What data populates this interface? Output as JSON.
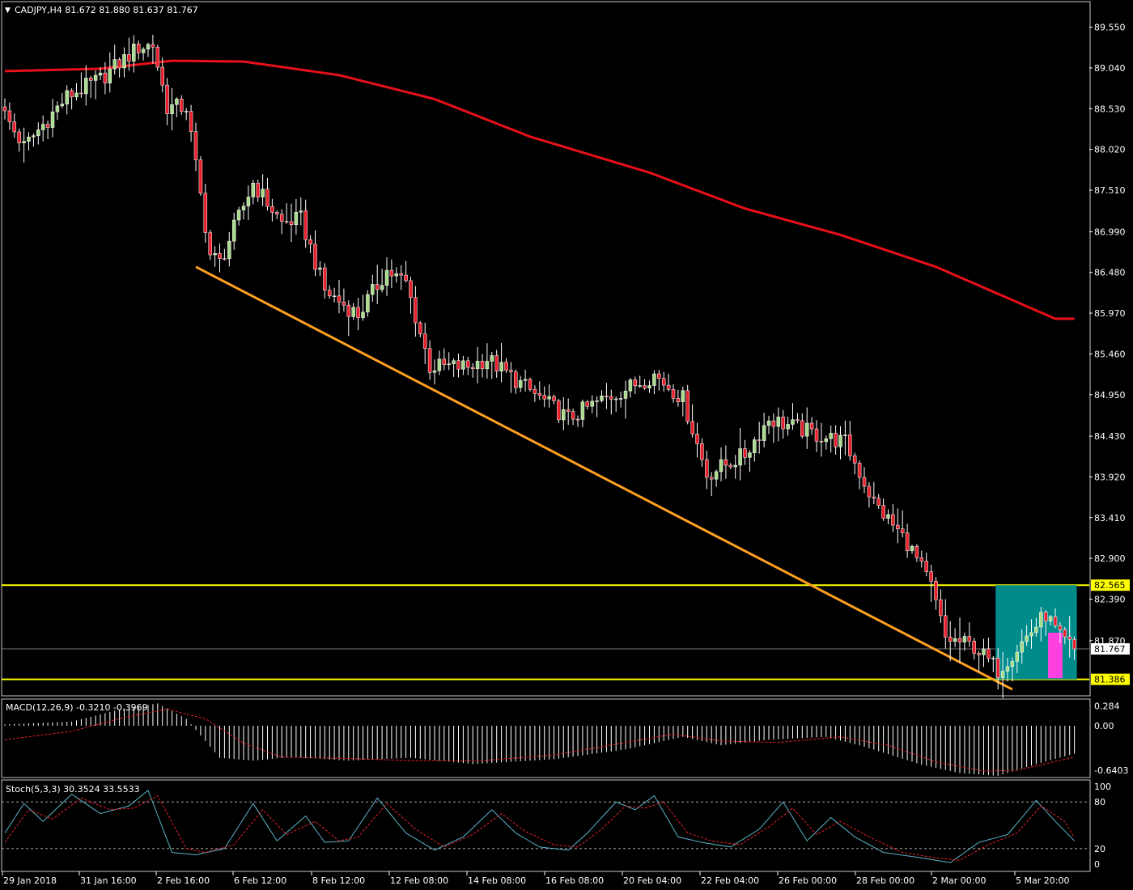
{
  "header": {
    "symbol_line": "CADJPY,H4  81.672 81.880 81.637 81.767",
    "menu_marker": "▼"
  },
  "colors": {
    "background": "#000000",
    "grid": "#ffffff",
    "bull_candle": "#a9dc8a",
    "bear_candle": "#e8202c",
    "wick": "#ffffff",
    "ma_line": "#e8101a",
    "trendline": "#ffa020",
    "support_resistance": "#ffff00",
    "zone_fill": "#008b8b",
    "zone_marker": "#ff40e0",
    "macd_hist": "#ffffff",
    "macd_signal": "#e8202c",
    "stoch_main": "#5ab4c8",
    "stoch_signal": "#e8202c",
    "price_tag_bg": "#ffff00",
    "current_price_tag_bg": "#ffffff"
  },
  "chart_data": [
    {
      "type": "candlestick",
      "title": "CADJPY,H4",
      "ohlc_header": [
        "81.672",
        "81.880",
        "81.637",
        "81.767"
      ],
      "ylim": [
        81.2,
        89.85
      ],
      "y_ticks": [
        "89.550",
        "89.040",
        "88.530",
        "88.020",
        "87.510",
        "86.990",
        "86.480",
        "85.970",
        "85.460",
        "84.950",
        "84.430",
        "83.920",
        "83.410",
        "82.900",
        "82.390",
        "81.870"
      ],
      "horizontal_levels": [
        {
          "label": "82.565",
          "value": 82.565
        },
        {
          "label": "81.386",
          "value": 81.386
        }
      ],
      "current_price": {
        "label": "81.767",
        "value": 81.767
      },
      "trendline": {
        "from": {
          "bar": 40,
          "price": 86.55
        },
        "to": {
          "bar": 211,
          "price": 81.26
        }
      },
      "moving_average_anchors": [
        {
          "bar": 0,
          "price": 89.0
        },
        {
          "bar": 20,
          "price": 89.03
        },
        {
          "bar": 35,
          "price": 89.13
        },
        {
          "bar": 50,
          "price": 89.12
        },
        {
          "bar": 70,
          "price": 88.95
        },
        {
          "bar": 90,
          "price": 88.65
        },
        {
          "bar": 110,
          "price": 88.18
        },
        {
          "bar": 135,
          "price": 87.73
        },
        {
          "bar": 155,
          "price": 87.28
        },
        {
          "bar": 175,
          "price": 86.95
        },
        {
          "bar": 195,
          "price": 86.55
        },
        {
          "bar": 220,
          "price": 85.9
        }
      ],
      "price_path": [
        {
          "bar": 0,
          "price": 88.45
        },
        {
          "bar": 4,
          "price": 88.05
        },
        {
          "bar": 13,
          "price": 88.68
        },
        {
          "bar": 20,
          "price": 88.9
        },
        {
          "bar": 28,
          "price": 89.3
        },
        {
          "bar": 31,
          "price": 89.33
        },
        {
          "bar": 34,
          "price": 88.55
        },
        {
          "bar": 38,
          "price": 88.55
        },
        {
          "bar": 43,
          "price": 86.7
        },
        {
          "bar": 45,
          "price": 86.6
        },
        {
          "bar": 52,
          "price": 87.6
        },
        {
          "bar": 58,
          "price": 87.1
        },
        {
          "bar": 62,
          "price": 87.15
        },
        {
          "bar": 67,
          "price": 86.25
        },
        {
          "bar": 74,
          "price": 85.95
        },
        {
          "bar": 80,
          "price": 86.5
        },
        {
          "bar": 84,
          "price": 86.35
        },
        {
          "bar": 89,
          "price": 85.3
        },
        {
          "bar": 97,
          "price": 85.3
        },
        {
          "bar": 101,
          "price": 85.4
        },
        {
          "bar": 110,
          "price": 85.0
        },
        {
          "bar": 118,
          "price": 84.65
        },
        {
          "bar": 124,
          "price": 84.85
        },
        {
          "bar": 131,
          "price": 85.05
        },
        {
          "bar": 136,
          "price": 85.2
        },
        {
          "bar": 142,
          "price": 84.9
        },
        {
          "bar": 147,
          "price": 83.95
        },
        {
          "bar": 155,
          "price": 84.2
        },
        {
          "bar": 160,
          "price": 84.65
        },
        {
          "bar": 170,
          "price": 84.45
        },
        {
          "bar": 176,
          "price": 84.35
        },
        {
          "bar": 182,
          "price": 83.6
        },
        {
          "bar": 189,
          "price": 83.1
        },
        {
          "bar": 194,
          "price": 82.55
        },
        {
          "bar": 197,
          "price": 81.9
        },
        {
          "bar": 203,
          "price": 81.8
        },
        {
          "bar": 208,
          "price": 81.5
        },
        {
          "bar": 213,
          "price": 81.85
        },
        {
          "bar": 218,
          "price": 82.2
        },
        {
          "bar": 221,
          "price": 81.9
        },
        {
          "bar": 224,
          "price": 81.767
        }
      ]
    },
    {
      "type": "macd",
      "title": "MACD(12,26,9) -0.3210 -0.3969",
      "ylim": [
        -0.72,
        0.36
      ],
      "y_ticks": [
        "0.284",
        "0.00",
        "-0.6403"
      ],
      "series": [
        {
          "name": "MACD",
          "anchors": [
            {
              "bar": 0,
              "value": 0.02
            },
            {
              "bar": 14,
              "value": 0.06
            },
            {
              "bar": 25,
              "value": 0.25
            },
            {
              "bar": 32,
              "value": 0.32
            },
            {
              "bar": 38,
              "value": 0.1
            },
            {
              "bar": 45,
              "value": -0.46
            },
            {
              "bar": 52,
              "value": -0.5
            },
            {
              "bar": 60,
              "value": -0.45
            },
            {
              "bar": 72,
              "value": -0.5
            },
            {
              "bar": 85,
              "value": -0.46
            },
            {
              "bar": 98,
              "value": -0.55
            },
            {
              "bar": 115,
              "value": -0.48
            },
            {
              "bar": 130,
              "value": -0.34
            },
            {
              "bar": 142,
              "value": -0.16
            },
            {
              "bar": 150,
              "value": -0.28
            },
            {
              "bar": 160,
              "value": -0.2
            },
            {
              "bar": 172,
              "value": -0.16
            },
            {
              "bar": 180,
              "value": -0.3
            },
            {
              "bar": 192,
              "value": -0.56
            },
            {
              "bar": 200,
              "value": -0.68
            },
            {
              "bar": 208,
              "value": -0.72
            },
            {
              "bar": 216,
              "value": -0.55
            },
            {
              "bar": 224,
              "value": -0.4
            }
          ]
        },
        {
          "name": "Signal",
          "anchors": [
            {
              "bar": 0,
              "value": -0.2
            },
            {
              "bar": 14,
              "value": -0.08
            },
            {
              "bar": 25,
              "value": 0.12
            },
            {
              "bar": 34,
              "value": 0.24
            },
            {
              "bar": 42,
              "value": 0.1
            },
            {
              "bar": 50,
              "value": -0.25
            },
            {
              "bar": 58,
              "value": -0.45
            },
            {
              "bar": 72,
              "value": -0.47
            },
            {
              "bar": 85,
              "value": -0.5
            },
            {
              "bar": 100,
              "value": -0.5
            },
            {
              "bar": 115,
              "value": -0.42
            },
            {
              "bar": 130,
              "value": -0.24
            },
            {
              "bar": 140,
              "value": -0.12
            },
            {
              "bar": 150,
              "value": -0.22
            },
            {
              "bar": 162,
              "value": -0.24
            },
            {
              "bar": 175,
              "value": -0.16
            },
            {
              "bar": 185,
              "value": -0.28
            },
            {
              "bar": 195,
              "value": -0.52
            },
            {
              "bar": 205,
              "value": -0.65
            },
            {
              "bar": 212,
              "value": -0.64
            },
            {
              "bar": 224,
              "value": -0.45
            }
          ]
        }
      ]
    },
    {
      "type": "stochastic",
      "title": "Stoch(5,3,3) 30.3524 33.5533",
      "ylim": [
        0,
        100
      ],
      "y_ticks": [
        "100",
        "80",
        "20",
        "0"
      ],
      "levels": [
        80,
        20
      ],
      "series": [
        {
          "name": "%K",
          "anchors": [
            {
              "bar": 0,
              "value": 40
            },
            {
              "bar": 4,
              "value": 78
            },
            {
              "bar": 8,
              "value": 55
            },
            {
              "bar": 14,
              "value": 90
            },
            {
              "bar": 20,
              "value": 65
            },
            {
              "bar": 26,
              "value": 75
            },
            {
              "bar": 30,
              "value": 95
            },
            {
              "bar": 35,
              "value": 15
            },
            {
              "bar": 40,
              "value": 12
            },
            {
              "bar": 46,
              "value": 20
            },
            {
              "bar": 52,
              "value": 78
            },
            {
              "bar": 57,
              "value": 30
            },
            {
              "bar": 63,
              "value": 62
            },
            {
              "bar": 67,
              "value": 28
            },
            {
              "bar": 72,
              "value": 30
            },
            {
              "bar": 78,
              "value": 85
            },
            {
              "bar": 84,
              "value": 40
            },
            {
              "bar": 90,
              "value": 18
            },
            {
              "bar": 96,
              "value": 35
            },
            {
              "bar": 102,
              "value": 70
            },
            {
              "bar": 107,
              "value": 40
            },
            {
              "bar": 112,
              "value": 22
            },
            {
              "bar": 118,
              "value": 18
            },
            {
              "bar": 122,
              "value": 40
            },
            {
              "bar": 128,
              "value": 80
            },
            {
              "bar": 132,
              "value": 70
            },
            {
              "bar": 136,
              "value": 88
            },
            {
              "bar": 141,
              "value": 35
            },
            {
              "bar": 146,
              "value": 28
            },
            {
              "bar": 152,
              "value": 22
            },
            {
              "bar": 158,
              "value": 45
            },
            {
              "bar": 163,
              "value": 80
            },
            {
              "bar": 168,
              "value": 30
            },
            {
              "bar": 173,
              "value": 60
            },
            {
              "bar": 178,
              "value": 35
            },
            {
              "bar": 184,
              "value": 15
            },
            {
              "bar": 192,
              "value": 8
            },
            {
              "bar": 198,
              "value": 2
            },
            {
              "bar": 204,
              "value": 28
            },
            {
              "bar": 210,
              "value": 38
            },
            {
              "bar": 216,
              "value": 82
            },
            {
              "bar": 220,
              "value": 55
            },
            {
              "bar": 224,
              "value": 30
            }
          ]
        },
        {
          "name": "%D",
          "anchors": [
            {
              "bar": 0,
              "value": 28
            },
            {
              "bar": 5,
              "value": 70
            },
            {
              "bar": 10,
              "value": 58
            },
            {
              "bar": 16,
              "value": 85
            },
            {
              "bar": 22,
              "value": 70
            },
            {
              "bar": 27,
              "value": 72
            },
            {
              "bar": 32,
              "value": 88
            },
            {
              "bar": 38,
              "value": 20
            },
            {
              "bar": 42,
              "value": 15
            },
            {
              "bar": 48,
              "value": 25
            },
            {
              "bar": 54,
              "value": 70
            },
            {
              "bar": 59,
              "value": 38
            },
            {
              "bar": 65,
              "value": 55
            },
            {
              "bar": 70,
              "value": 30
            },
            {
              "bar": 74,
              "value": 35
            },
            {
              "bar": 80,
              "value": 78
            },
            {
              "bar": 86,
              "value": 45
            },
            {
              "bar": 92,
              "value": 22
            },
            {
              "bar": 98,
              "value": 38
            },
            {
              "bar": 104,
              "value": 65
            },
            {
              "bar": 109,
              "value": 42
            },
            {
              "bar": 115,
              "value": 25
            },
            {
              "bar": 120,
              "value": 22
            },
            {
              "bar": 125,
              "value": 45
            },
            {
              "bar": 130,
              "value": 75
            },
            {
              "bar": 134,
              "value": 72
            },
            {
              "bar": 138,
              "value": 80
            },
            {
              "bar": 143,
              "value": 40
            },
            {
              "bar": 148,
              "value": 30
            },
            {
              "bar": 154,
              "value": 25
            },
            {
              "bar": 160,
              "value": 48
            },
            {
              "bar": 165,
              "value": 72
            },
            {
              "bar": 170,
              "value": 38
            },
            {
              "bar": 175,
              "value": 55
            },
            {
              "bar": 181,
              "value": 35
            },
            {
              "bar": 188,
              "value": 15
            },
            {
              "bar": 195,
              "value": 8
            },
            {
              "bar": 200,
              "value": 5
            },
            {
              "bar": 206,
              "value": 25
            },
            {
              "bar": 212,
              "value": 40
            },
            {
              "bar": 217,
              "value": 75
            },
            {
              "bar": 222,
              "value": 55
            },
            {
              "bar": 224,
              "value": 34
            }
          ]
        }
      ]
    }
  ],
  "x_axis": {
    "labels": [
      "29 Jan 2018",
      "31 Jan 16:00",
      "2 Feb 16:00",
      "6 Feb 12:00",
      "8 Feb 12:00",
      "12 Feb 08:00",
      "14 Feb 08:00",
      "16 Feb 08:00",
      "20 Feb 04:00",
      "22 Feb 04:00",
      "26 Feb 00:00",
      "28 Feb 00:00",
      "2 Mar 00:00",
      "5 Mar 20:00"
    ]
  },
  "zone": {
    "from_bar": 208,
    "to_bar": 224,
    "top": 82.565,
    "bottom": 81.386
  }
}
